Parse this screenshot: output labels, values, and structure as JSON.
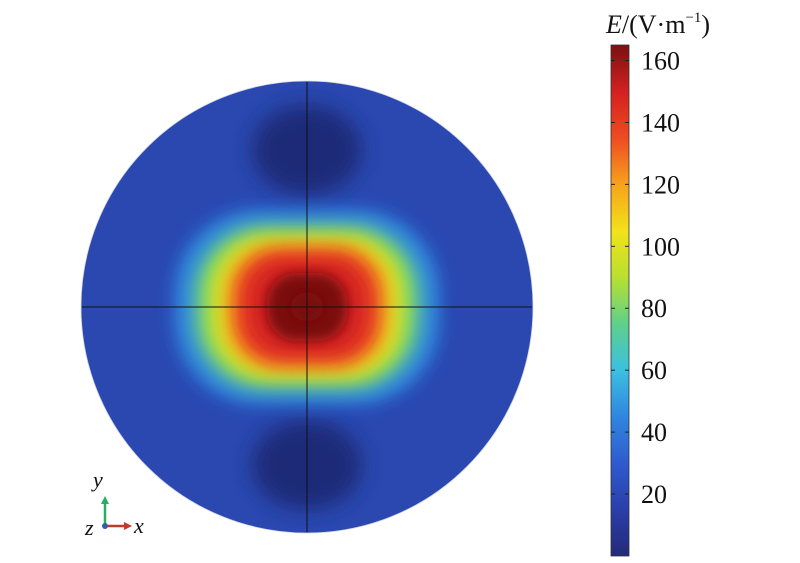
{
  "chart_data": {
    "type": "heatmap",
    "title": "",
    "colorbar": {
      "label": {
        "quantity": "E",
        "unit_prefix": "/(V·m",
        "exponent": "−1",
        "suffix": ")"
      },
      "ticks": [
        "20",
        "40",
        "60",
        "80",
        "100",
        "120",
        "140",
        "160"
      ],
      "tick_values": [
        20,
        40,
        60,
        80,
        100,
        120,
        140,
        160
      ],
      "range": [
        0,
        165
      ]
    },
    "field": {
      "shape": "circle",
      "peak_value": 165,
      "peak_location": "center",
      "background_value": 18,
      "minima_locations": [
        "top",
        "bottom"
      ],
      "crosshair_lines": true
    },
    "triad": {
      "x_label": "x",
      "y_label": "y",
      "z_label": "z",
      "x_color": "#c0392b",
      "y_color": "#27ae60",
      "z_color": "#2e5fa8"
    },
    "colormap": [
      "#232a7a",
      "#2a3fa8",
      "#2f5bd0",
      "#2f86e0",
      "#3cc0e0",
      "#5fd08a",
      "#b8e030",
      "#f2e21a",
      "#f7a21b",
      "#ee4b22",
      "#d42020",
      "#7a1111"
    ]
  }
}
